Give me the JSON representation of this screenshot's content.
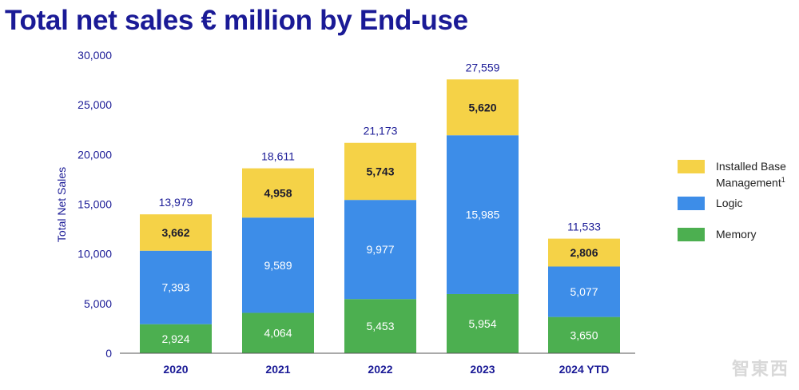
{
  "title": "Total net sales € million by End-use",
  "chart_data": {
    "type": "bar",
    "stacked": true,
    "ylabel": "Total Net Sales",
    "xlabel": "",
    "ylim": [
      0,
      30000
    ],
    "yticks": [
      "30,000",
      "25,000",
      "20,000",
      "15,000",
      "10,000",
      "5,000",
      "0"
    ],
    "ytick_values": [
      30000,
      25000,
      20000,
      15000,
      10000,
      5000,
      0
    ],
    "categories": [
      "2020",
      "2021",
      "2022",
      "2023",
      "2024 YTD"
    ],
    "totals": [
      13979,
      18611,
      21173,
      27559,
      11533
    ],
    "total_labels": [
      "13,979",
      "18,611",
      "21,173",
      "27,559",
      "11,533"
    ],
    "series": [
      {
        "name": "Memory",
        "color": "#4caf50",
        "values": [
          2924,
          4064,
          5453,
          5954,
          3650
        ],
        "labels": [
          "2,924",
          "4,064",
          "5,453",
          "5,954",
          "3,650"
        ]
      },
      {
        "name": "Logic",
        "color": "#3d8de8",
        "values": [
          7393,
          9589,
          9977,
          15985,
          5077
        ],
        "labels": [
          "7,393",
          "9,589",
          "9,977",
          "15,985",
          "5,077"
        ]
      },
      {
        "name": "Installed Base Management",
        "color": "#f5d247",
        "values": [
          3662,
          4958,
          5743,
          5620,
          2806
        ],
        "labels": [
          "3,662",
          "4,958",
          "5,743",
          "5,620",
          "2,806"
        ]
      }
    ],
    "legend": {
      "position": "right",
      "items": [
        {
          "label": "Installed Base Management",
          "superscript": "1",
          "color": "#f5d247"
        },
        {
          "label": "Logic",
          "superscript": "",
          "color": "#3d8de8"
        },
        {
          "label": "Memory",
          "superscript": "",
          "color": "#4caf50"
        }
      ]
    },
    "grid": false
  },
  "watermark": "智東西"
}
